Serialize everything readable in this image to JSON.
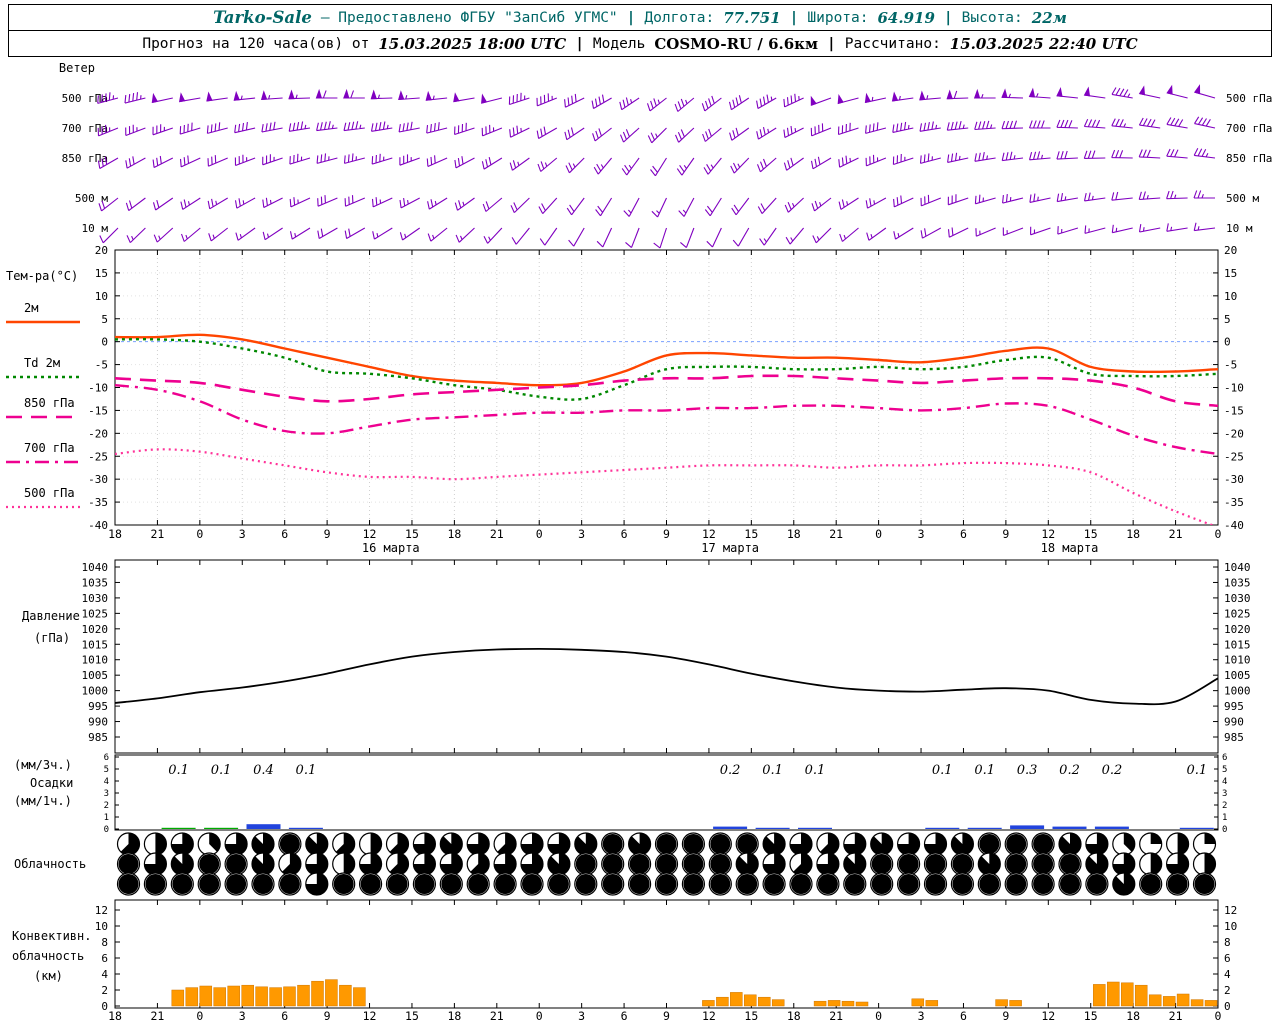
{
  "header_row1": {
    "station": "Tarko-Sale",
    "provider": "— Предоставлено ФГБУ \"ЗапСиб УГМС\"",
    "sep": "|",
    "lon_label": "Долгота:",
    "lon_value": "77.751",
    "lat_label": "Широта:",
    "lat_value": "64.919",
    "alt_label": "Высота:",
    "alt_value": "22м"
  },
  "header_row2": {
    "forecast_label": "Прогноз на 120 часа(ов) от",
    "forecast_time": "15.03.2025 18:00 UTC",
    "sep": "|",
    "model_label": "Модель",
    "model_value": "COSMO-RU / 6.6км",
    "calc_label": "Рассчитано:",
    "calc_value": "15.03.2025 22:40 UTC"
  },
  "time_axis": {
    "hour_labels": [
      "18",
      "21",
      "0",
      "3",
      "6",
      "9",
      "12",
      "15",
      "18",
      "21",
      "0",
      "3",
      "6",
      "9",
      "12",
      "15",
      "18",
      "21",
      "0",
      "3",
      "6",
      "9",
      "12",
      "15",
      "18",
      "21",
      "0"
    ],
    "date_labels": [
      {
        "label": "16 марта",
        "center_tick": 6.5
      },
      {
        "label": "17 марта",
        "center_tick": 14.5
      },
      {
        "label": "18 марта",
        "center_tick": 22.5
      }
    ]
  },
  "colors": {
    "wind_barb": "#8000C0",
    "temp_2m": "#FF4500",
    "dewpoint_2m": "#008800",
    "temp_850": "#EE0090",
    "temp_700": "#EE0090",
    "temp_500": "#FF3399",
    "pressure": "#000000",
    "precip_rain": "#00AA00",
    "precip_snow": "#2244DD",
    "convective": "#FF9900",
    "header_accent": "#006666",
    "zero_line": "#7AA0FF"
  },
  "chart_data": [
    {
      "type": "wind-barbs",
      "panel": "wind",
      "title": "Ветер",
      "levels": [
        {
          "label": "500 гПа",
          "dirs_deg": [
            255,
            256,
            258,
            260,
            262,
            264,
            266,
            268,
            270,
            270,
            268,
            266,
            264,
            260,
            256,
            252,
            248,
            244,
            240,
            236,
            232,
            230,
            232,
            236,
            240,
            245,
            250,
            255,
            258,
            262,
            265,
            268,
            270,
            272,
            274,
            276,
            278,
            280,
            282,
            284,
            286
          ],
          "speeds_kt": [
            45,
            46,
            48,
            50,
            52,
            54,
            55,
            57,
            58,
            58,
            57,
            55,
            53,
            50,
            48,
            45,
            43,
            40,
            38,
            36,
            35,
            37,
            39,
            42,
            45,
            47,
            50,
            52,
            54,
            55,
            57,
            58,
            57,
            55,
            53,
            50,
            48,
            47,
            48,
            50,
            52
          ]
        },
        {
          "label": "700 гПа",
          "dirs_deg": [
            248,
            249,
            251,
            253,
            255,
            257,
            259,
            261,
            263,
            263,
            261,
            259,
            256,
            252,
            248,
            244,
            240,
            236,
            232,
            228,
            225,
            227,
            230,
            234,
            238,
            243,
            248,
            252,
            255,
            258,
            261,
            264,
            266,
            268,
            270,
            272,
            274,
            276,
            278,
            280,
            282
          ],
          "speeds_kt": [
            35,
            36,
            37,
            38,
            40,
            41,
            42,
            44,
            45,
            45,
            44,
            42,
            40,
            38,
            36,
            34,
            32,
            30,
            29,
            28,
            27,
            28,
            30,
            32,
            34,
            36,
            38,
            40,
            42,
            43,
            44,
            45,
            44,
            42,
            40,
            39,
            38,
            37,
            38,
            39,
            40
          ]
        },
        {
          "label": "850 гПа",
          "dirs_deg": [
            240,
            241,
            243,
            245,
            247,
            249,
            251,
            253,
            255,
            255,
            253,
            250,
            246,
            242,
            238,
            234,
            230,
            225,
            220,
            216,
            212,
            215,
            219,
            224,
            229,
            234,
            239,
            244,
            248,
            252,
            255,
            258,
            261,
            263,
            265,
            267,
            269,
            271,
            273,
            275,
            277
          ],
          "speeds_kt": [
            28,
            29,
            30,
            31,
            32,
            33,
            34,
            35,
            36,
            36,
            35,
            34,
            32,
            30,
            28,
            27,
            26,
            25,
            24,
            23,
            22,
            23,
            25,
            27,
            29,
            30,
            32,
            33,
            34,
            35,
            36,
            36,
            35,
            34,
            33,
            32,
            31,
            30,
            31,
            32,
            33
          ]
        },
        {
          "label": "500 м",
          "dirs_deg": [
            232,
            233,
            235,
            237,
            239,
            241,
            243,
            245,
            247,
            247,
            245,
            242,
            238,
            234,
            230,
            226,
            222,
            217,
            212,
            208,
            205,
            208,
            212,
            217,
            222,
            227,
            232,
            237,
            241,
            245,
            248,
            251,
            254,
            256,
            258,
            260,
            262,
            264,
            266,
            268,
            270
          ],
          "speeds_kt": [
            20,
            21,
            22,
            23,
            24,
            25,
            26,
            27,
            28,
            28,
            27,
            26,
            25,
            24,
            22,
            21,
            20,
            19,
            18,
            17,
            16,
            17,
            19,
            20,
            22,
            23,
            25,
            26,
            27,
            28,
            28,
            28,
            27,
            26,
            25,
            24,
            23,
            22,
            23,
            24,
            25
          ]
        },
        {
          "label": "10 м",
          "dirs_deg": [
            225,
            226,
            228,
            230,
            232,
            234,
            236,
            238,
            240,
            240,
            238,
            235,
            231,
            227,
            223,
            219,
            215,
            210,
            205,
            201,
            198,
            201,
            205,
            210,
            215,
            220,
            225,
            230,
            234,
            238,
            241,
            244,
            247,
            249,
            251,
            253,
            255,
            257,
            259,
            261,
            263
          ],
          "speeds_kt": [
            12,
            13,
            14,
            15,
            15,
            16,
            17,
            17,
            18,
            18,
            17,
            16,
            15,
            14,
            13,
            12,
            12,
            11,
            10,
            10,
            9,
            10,
            11,
            12,
            13,
            14,
            15,
            16,
            17,
            17,
            18,
            18,
            17,
            16,
            15,
            15,
            14,
            13,
            14,
            15,
            16
          ]
        }
      ]
    },
    {
      "type": "line",
      "panel": "temperature",
      "title": "Тем-ра(°C)",
      "ylim": [
        -40,
        20
      ],
      "ytick_step": 5,
      "series": [
        {
          "name": "2м",
          "style": "solid",
          "color_key": "temp_2m",
          "values": [
            1,
            1,
            1.5,
            0.5,
            -1.5,
            -3.5,
            -5.5,
            -7.5,
            -8.5,
            -9,
            -9.5,
            -9,
            -6.5,
            -3,
            -2.5,
            -3,
            -3.5,
            -3.5,
            -4,
            -4.5,
            -3.5,
            -2,
            -1.5,
            -5.5,
            -6.5,
            -6.5,
            -6
          ]
        },
        {
          "name": "Td 2м",
          "style": "dotted",
          "color_key": "dewpoint_2m",
          "values": [
            0.5,
            0.5,
            0,
            -1.5,
            -3.5,
            -6.5,
            -7,
            -8,
            -9.5,
            -10.5,
            -12,
            -12.5,
            -9.5,
            -6,
            -5.5,
            -5.5,
            -6,
            -6,
            -5.5,
            -6,
            -5.5,
            -4,
            -3.5,
            -7,
            -7.5,
            -7.5,
            -7
          ]
        },
        {
          "name": "850 гПа",
          "style": "dashed",
          "color_key": "temp_850",
          "values": [
            -8,
            -8.5,
            -9,
            -10.5,
            -12,
            -13,
            -12.5,
            -11.5,
            -11,
            -10.5,
            -10,
            -9.5,
            -8.5,
            -8,
            -8,
            -7.5,
            -7.5,
            -8,
            -8.5,
            -9,
            -8.5,
            -8,
            -8,
            -8.5,
            -10,
            -13,
            -14
          ]
        },
        {
          "name": "700 гПа",
          "style": "dashdot",
          "color_key": "temp_700",
          "values": [
            -9.5,
            -10.5,
            -13,
            -17,
            -19.5,
            -20,
            -18.5,
            -17,
            -16.5,
            -16,
            -15.5,
            -15.5,
            -15,
            -15,
            -14.5,
            -14.5,
            -14,
            -14,
            -14.5,
            -15,
            -14.5,
            -13.5,
            -14,
            -17,
            -20.5,
            -23,
            -24.5
          ]
        },
        {
          "name": "500 гПа",
          "style": "fine-dotted",
          "color_key": "temp_500",
          "values": [
            -24.5,
            -23.5,
            -24,
            -25.5,
            -27,
            -28.5,
            -29.5,
            -29.5,
            -30,
            -29.5,
            -29,
            -28.5,
            -28,
            -27.5,
            -27,
            -27,
            -27,
            -27.5,
            -27,
            -27,
            -26.5,
            -26.5,
            -27,
            -28.5,
            -33,
            -37,
            -40.5
          ]
        }
      ]
    },
    {
      "type": "line",
      "panel": "pressure",
      "title": "Давление",
      "unit": "(гПа)",
      "ylim": [
        985,
        1040
      ],
      "ytick_step": 5,
      "series": [
        {
          "name": "Давление",
          "style": "solid",
          "color_key": "pressure",
          "values": [
            996,
            997.5,
            999.5,
            1001,
            1003,
            1005.5,
            1008.5,
            1011,
            1012.5,
            1013.3,
            1013.5,
            1013.2,
            1012.5,
            1011,
            1008.5,
            1005.5,
            1003,
            1001,
            1000,
            999.7,
            1000.3,
            1000.8,
            1000,
            997,
            995.8,
            996.5,
            1004
          ]
        }
      ]
    },
    {
      "type": "bar",
      "panel": "precipitation",
      "title": "Осадки",
      "unit_top": "(мм/3ч.)",
      "unit_bottom": "(мм/1ч.)",
      "ylim": [
        0,
        6
      ],
      "ytick_step": 1,
      "amounts_3h": [
        0,
        0.1,
        0.1,
        0.4,
        0.1,
        0,
        0,
        0,
        0,
        0,
        0,
        0,
        0,
        0,
        0.2,
        0.1,
        0.1,
        0,
        0,
        0.1,
        0.1,
        0.3,
        0.2,
        0.2,
        0,
        0.1
      ],
      "bar_colors": [
        "",
        "rain",
        "rain",
        "snow",
        "snow",
        "",
        "",
        "",
        "",
        "",
        "",
        "",
        "",
        "",
        "snow",
        "snow",
        "snow",
        "",
        "",
        "snow",
        "snow",
        "snow",
        "snow",
        "snow",
        "",
        "snow"
      ]
    },
    {
      "type": "cloud-cover",
      "panel": "cloudiness",
      "title": "Облачность",
      "rows_octa": [
        [
          5,
          4,
          6,
          3,
          6,
          7,
          8,
          7,
          5,
          4,
          5,
          6,
          7,
          6,
          5,
          6,
          6,
          7,
          8,
          7,
          8,
          8,
          8,
          8,
          7,
          6,
          5,
          6,
          7,
          6,
          6,
          7,
          8,
          8,
          8,
          7,
          6,
          3,
          2,
          4,
          2
        ],
        [
          8,
          6,
          7,
          8,
          8,
          7,
          5,
          6,
          4,
          6,
          5,
          6,
          6,
          5,
          6,
          6,
          7,
          8,
          8,
          8,
          8,
          8,
          8,
          7,
          6,
          5,
          6,
          7,
          8,
          8,
          8,
          8,
          7,
          8,
          8,
          8,
          7,
          6,
          4,
          6,
          4
        ],
        [
          8,
          8,
          8,
          8,
          8,
          8,
          8,
          6,
          8,
          8,
          8,
          8,
          8,
          8,
          8,
          8,
          8,
          8,
          8,
          8,
          8,
          8,
          8,
          8,
          8,
          8,
          8,
          8,
          8,
          8,
          8,
          8,
          8,
          8,
          8,
          8,
          8,
          7,
          8,
          8,
          8
        ]
      ]
    },
    {
      "type": "bar",
      "panel": "convective-clouds",
      "title_lines": [
        "Конвективн.",
        "облачность",
        "(км)"
      ],
      "ylim": [
        0,
        13
      ],
      "ytick_step": 2,
      "values_km": [
        0,
        0,
        0,
        0,
        2,
        2.3,
        2.5,
        2.3,
        2.5,
        2.6,
        2.4,
        2.3,
        2.4,
        2.6,
        3.1,
        3.3,
        2.6,
        2.3,
        0,
        0,
        0,
        0,
        0,
        0,
        0,
        0,
        0,
        0,
        0,
        0,
        0,
        0,
        0,
        0,
        0,
        0,
        0,
        0,
        0,
        0,
        0,
        0,
        0.7,
        1.1,
        1.7,
        1.4,
        1.1,
        0.8,
        0,
        0,
        0.6,
        0.7,
        0.6,
        0.5,
        0,
        0,
        0,
        0.9,
        0.7,
        0,
        0,
        0,
        0,
        0.8,
        0.7,
        0,
        0,
        0,
        0,
        0,
        2.7,
        3,
        2.9,
        2.6,
        1.4,
        1.2,
        1.5,
        0.8,
        0.7
      ]
    }
  ]
}
